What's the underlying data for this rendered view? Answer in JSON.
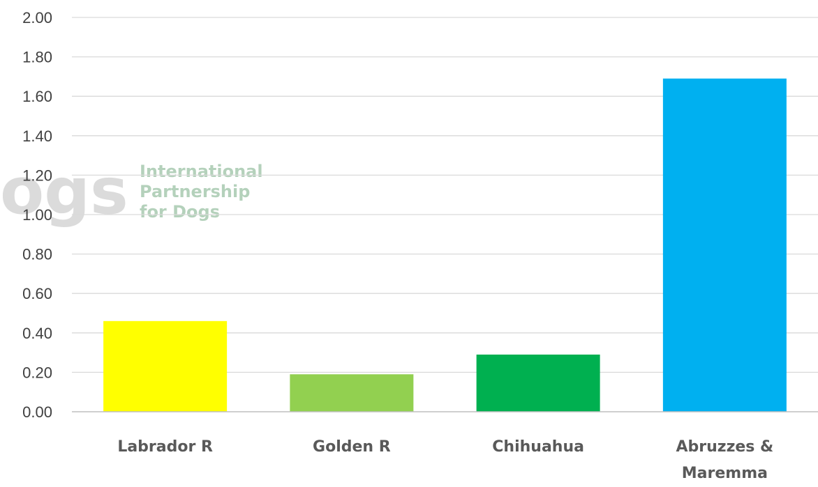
{
  "watermark": {
    "logo_text": "ogs",
    "lines": [
      "International",
      "Partnership",
      "for Dogs"
    ],
    "logo_color": "#9a9a9a",
    "text_color": "#5a9a6a"
  },
  "chart_data": {
    "type": "bar",
    "categories": [
      [
        "Labrador R"
      ],
      [
        "Golden R"
      ],
      [
        "Chihuahua"
      ],
      [
        "Abruzzes &",
        "Maremma"
      ]
    ],
    "values": [
      0.46,
      0.19,
      0.29,
      1.69
    ],
    "colors": [
      "#ffff00",
      "#92d050",
      "#00b050",
      "#00b0f0"
    ],
    "ylim": [
      0,
      2
    ],
    "yticks": [
      "0.00",
      "0.20",
      "0.40",
      "0.60",
      "0.80",
      "1.00",
      "1.20",
      "1.40",
      "1.60",
      "1.80",
      "2.00"
    ],
    "grid": true,
    "gridline_color": "#d9d9d9",
    "axis_color": "#bfbfbf",
    "title": "",
    "xlabel": "",
    "ylabel": ""
  }
}
